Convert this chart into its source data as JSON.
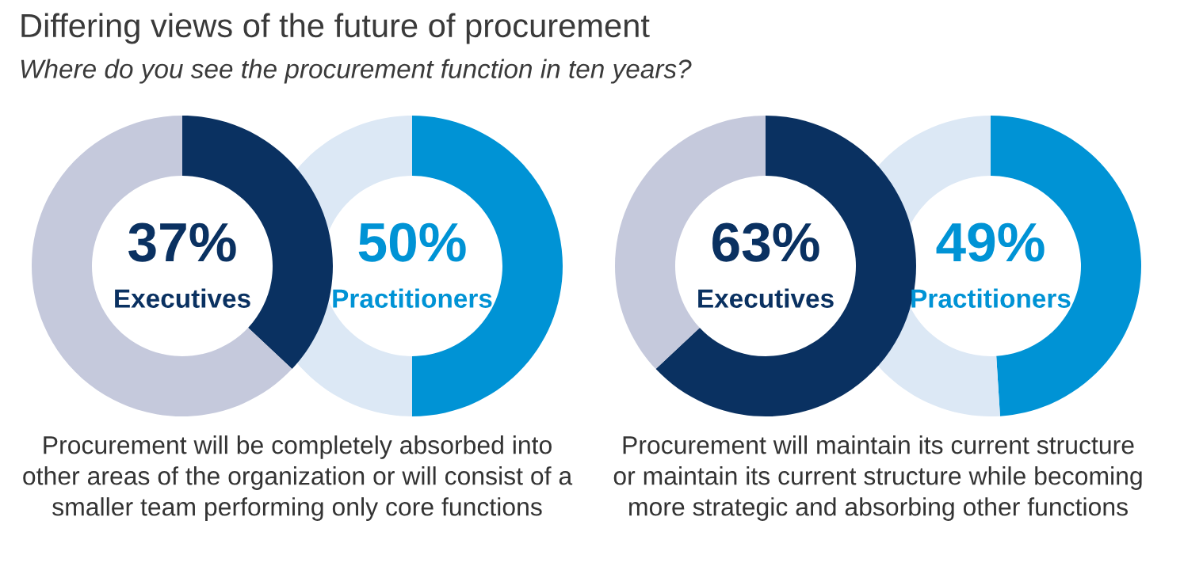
{
  "chart_data": [
    {
      "type": "donut",
      "title": "Differing views of the future of procurement",
      "subtitle": "Where do you see the procurement function in ten years?",
      "categories": [
        null,
        null
      ],
      "values": [
        37,
        63
      ],
      "colors": [
        "#0a3161",
        "#c5c9dc"
      ],
      "annotations": [
        "37%",
        "Executives",
        "Procurement will be completely absorbed into\nother areas of the organization or will consist of a\nsmaller team performing only core functions"
      ]
    },
    {
      "type": "donut",
      "categories": [
        null,
        null
      ],
      "values": [
        50,
        50
      ],
      "colors": [
        "#0093d5",
        "#dce8f5"
      ],
      "annotations": [
        "50%",
        "Practitioners"
      ]
    },
    {
      "type": "donut",
      "categories": [
        null,
        null
      ],
      "values": [
        63,
        37
      ],
      "colors": [
        "#0a3161",
        "#c5c9dc"
      ],
      "annotations": [
        "63%",
        "Executives",
        "Procurement will maintain its current structure\nor maintain its current structure while becoming\nmore strategic and absorbing other functions"
      ]
    },
    {
      "type": "donut",
      "categories": [
        null,
        null
      ],
      "values": [
        49,
        51
      ],
      "colors": [
        "#0093d5",
        "#dce8f5"
      ],
      "annotations": [
        "49%",
        "Practitioners"
      ]
    }
  ]
}
